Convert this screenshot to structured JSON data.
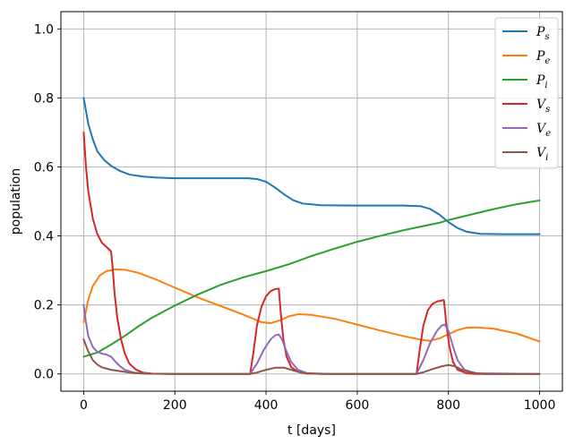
{
  "chart_data": {
    "type": "line",
    "xlabel": "t [days]",
    "ylabel": "population",
    "xlim": [
      -50,
      1050
    ],
    "ylim": [
      -0.05,
      1.05
    ],
    "xticks": [
      0,
      200,
      400,
      600,
      800,
      1000
    ],
    "yticks": [
      0.0,
      0.2,
      0.4,
      0.6,
      0.8,
      1.0
    ],
    "xtick_labels": [
      "0",
      "200",
      "400",
      "600",
      "800",
      "1000"
    ],
    "ytick_labels": [
      "0.0",
      "0.2",
      "0.4",
      "0.6",
      "0.8",
      "1.0"
    ],
    "grid": true,
    "legend_position": "top-right",
    "series": [
      {
        "name": "P",
        "sub": "s",
        "color": "#1f77b4",
        "points": [
          [
            0,
            0.8
          ],
          [
            10,
            0.725
          ],
          [
            20,
            0.68
          ],
          [
            30,
            0.645
          ],
          [
            45,
            0.62
          ],
          [
            60,
            0.603
          ],
          [
            80,
            0.588
          ],
          [
            100,
            0.578
          ],
          [
            130,
            0.572
          ],
          [
            160,
            0.569
          ],
          [
            200,
            0.567
          ],
          [
            300,
            0.567
          ],
          [
            360,
            0.567
          ],
          [
            380,
            0.565
          ],
          [
            400,
            0.557
          ],
          [
            420,
            0.54
          ],
          [
            440,
            0.52
          ],
          [
            460,
            0.503
          ],
          [
            480,
            0.494
          ],
          [
            520,
            0.489
          ],
          [
            600,
            0.488
          ],
          [
            700,
            0.488
          ],
          [
            740,
            0.486
          ],
          [
            760,
            0.478
          ],
          [
            780,
            0.462
          ],
          [
            800,
            0.44
          ],
          [
            820,
            0.423
          ],
          [
            840,
            0.412
          ],
          [
            870,
            0.406
          ],
          [
            920,
            0.405
          ],
          [
            1000,
            0.405
          ]
        ]
      },
      {
        "name": "P",
        "sub": "e",
        "color": "#ff7f0e",
        "points": [
          [
            0,
            0.15
          ],
          [
            10,
            0.215
          ],
          [
            20,
            0.255
          ],
          [
            35,
            0.285
          ],
          [
            50,
            0.298
          ],
          [
            70,
            0.303
          ],
          [
            90,
            0.302
          ],
          [
            120,
            0.293
          ],
          [
            160,
            0.273
          ],
          [
            200,
            0.25
          ],
          [
            250,
            0.222
          ],
          [
            300,
            0.197
          ],
          [
            350,
            0.172
          ],
          [
            390,
            0.15
          ],
          [
            410,
            0.147
          ],
          [
            430,
            0.155
          ],
          [
            450,
            0.167
          ],
          [
            470,
            0.173
          ],
          [
            500,
            0.171
          ],
          [
            550,
            0.16
          ],
          [
            600,
            0.143
          ],
          [
            650,
            0.126
          ],
          [
            700,
            0.11
          ],
          [
            740,
            0.099
          ],
          [
            760,
            0.096
          ],
          [
            780,
            0.103
          ],
          [
            800,
            0.115
          ],
          [
            820,
            0.127
          ],
          [
            840,
            0.134
          ],
          [
            860,
            0.135
          ],
          [
            900,
            0.131
          ],
          [
            950,
            0.117
          ],
          [
            1000,
            0.094
          ]
        ]
      },
      {
        "name": "P",
        "sub": "i",
        "color": "#2ca02c",
        "points": [
          [
            0,
            0.05
          ],
          [
            30,
            0.062
          ],
          [
            60,
            0.085
          ],
          [
            90,
            0.11
          ],
          [
            120,
            0.138
          ],
          [
            150,
            0.163
          ],
          [
            200,
            0.198
          ],
          [
            250,
            0.23
          ],
          [
            300,
            0.258
          ],
          [
            350,
            0.28
          ],
          [
            400,
            0.298
          ],
          [
            450,
            0.318
          ],
          [
            500,
            0.342
          ],
          [
            550,
            0.363
          ],
          [
            600,
            0.383
          ],
          [
            650,
            0.4
          ],
          [
            700,
            0.416
          ],
          [
            750,
            0.43
          ],
          [
            780,
            0.438
          ],
          [
            800,
            0.446
          ],
          [
            850,
            0.462
          ],
          [
            900,
            0.478
          ],
          [
            950,
            0.492
          ],
          [
            1000,
            0.503
          ]
        ]
      },
      {
        "name": "V",
        "sub": "s",
        "color": "#d62728",
        "points": [
          [
            0,
            0.7
          ],
          [
            5,
            0.6
          ],
          [
            10,
            0.53
          ],
          [
            20,
            0.45
          ],
          [
            30,
            0.405
          ],
          [
            40,
            0.38
          ],
          [
            50,
            0.368
          ],
          [
            60,
            0.355
          ],
          [
            64,
            0.3
          ],
          [
            68,
            0.23
          ],
          [
            74,
            0.16
          ],
          [
            82,
            0.1
          ],
          [
            90,
            0.06
          ],
          [
            100,
            0.03
          ],
          [
            115,
            0.012
          ],
          [
            130,
            0.004
          ],
          [
            150,
            0.001
          ],
          [
            200,
            0.0
          ],
          [
            365,
            0.0
          ],
          [
            372,
            0.06
          ],
          [
            380,
            0.14
          ],
          [
            390,
            0.195
          ],
          [
            400,
            0.225
          ],
          [
            410,
            0.24
          ],
          [
            420,
            0.246
          ],
          [
            428,
            0.247
          ],
          [
            432,
            0.18
          ],
          [
            438,
            0.1
          ],
          [
            445,
            0.05
          ],
          [
            455,
            0.02
          ],
          [
            470,
            0.006
          ],
          [
            490,
            0.001
          ],
          [
            550,
            0.0
          ],
          [
            730,
            0.0
          ],
          [
            737,
            0.07
          ],
          [
            745,
            0.14
          ],
          [
            755,
            0.185
          ],
          [
            765,
            0.203
          ],
          [
            775,
            0.21
          ],
          [
            790,
            0.214
          ],
          [
            795,
            0.15
          ],
          [
            802,
            0.08
          ],
          [
            810,
            0.035
          ],
          [
            820,
            0.012
          ],
          [
            840,
            0.002
          ],
          [
            860,
            0.0
          ],
          [
            1000,
            0.0
          ]
        ]
      },
      {
        "name": "V",
        "sub": "e",
        "color": "#9467bd",
        "points": [
          [
            0,
            0.2
          ],
          [
            5,
            0.15
          ],
          [
            10,
            0.11
          ],
          [
            20,
            0.078
          ],
          [
            30,
            0.064
          ],
          [
            40,
            0.059
          ],
          [
            50,
            0.056
          ],
          [
            60,
            0.05
          ],
          [
            70,
            0.035
          ],
          [
            80,
            0.022
          ],
          [
            90,
            0.012
          ],
          [
            110,
            0.004
          ],
          [
            140,
            0.001
          ],
          [
            200,
            0.0
          ],
          [
            365,
            0.0
          ],
          [
            380,
            0.03
          ],
          [
            395,
            0.07
          ],
          [
            410,
            0.1
          ],
          [
            420,
            0.112
          ],
          [
            428,
            0.114
          ],
          [
            435,
            0.1
          ],
          [
            445,
            0.065
          ],
          [
            455,
            0.035
          ],
          [
            470,
            0.012
          ],
          [
            490,
            0.002
          ],
          [
            550,
            0.0
          ],
          [
            730,
            0.0
          ],
          [
            745,
            0.04
          ],
          [
            760,
            0.09
          ],
          [
            775,
            0.125
          ],
          [
            785,
            0.14
          ],
          [
            792,
            0.143
          ],
          [
            800,
            0.125
          ],
          [
            810,
            0.08
          ],
          [
            820,
            0.04
          ],
          [
            835,
            0.012
          ],
          [
            860,
            0.002
          ],
          [
            1000,
            0.0
          ]
        ]
      },
      {
        "name": "V",
        "sub": "i",
        "color": "#8c564b",
        "points": [
          [
            0,
            0.1
          ],
          [
            10,
            0.065
          ],
          [
            20,
            0.04
          ],
          [
            30,
            0.027
          ],
          [
            40,
            0.019
          ],
          [
            60,
            0.012
          ],
          [
            80,
            0.008
          ],
          [
            100,
            0.004
          ],
          [
            130,
            0.001
          ],
          [
            200,
            0.0
          ],
          [
            365,
            0.0
          ],
          [
            380,
            0.004
          ],
          [
            400,
            0.012
          ],
          [
            420,
            0.018
          ],
          [
            440,
            0.018
          ],
          [
            460,
            0.01
          ],
          [
            480,
            0.003
          ],
          [
            520,
            0.0
          ],
          [
            730,
            0.0
          ],
          [
            745,
            0.005
          ],
          [
            765,
            0.014
          ],
          [
            785,
            0.022
          ],
          [
            800,
            0.026
          ],
          [
            815,
            0.022
          ],
          [
            830,
            0.012
          ],
          [
            850,
            0.004
          ],
          [
            880,
            0.0
          ],
          [
            1000,
            0.0
          ]
        ]
      }
    ]
  }
}
